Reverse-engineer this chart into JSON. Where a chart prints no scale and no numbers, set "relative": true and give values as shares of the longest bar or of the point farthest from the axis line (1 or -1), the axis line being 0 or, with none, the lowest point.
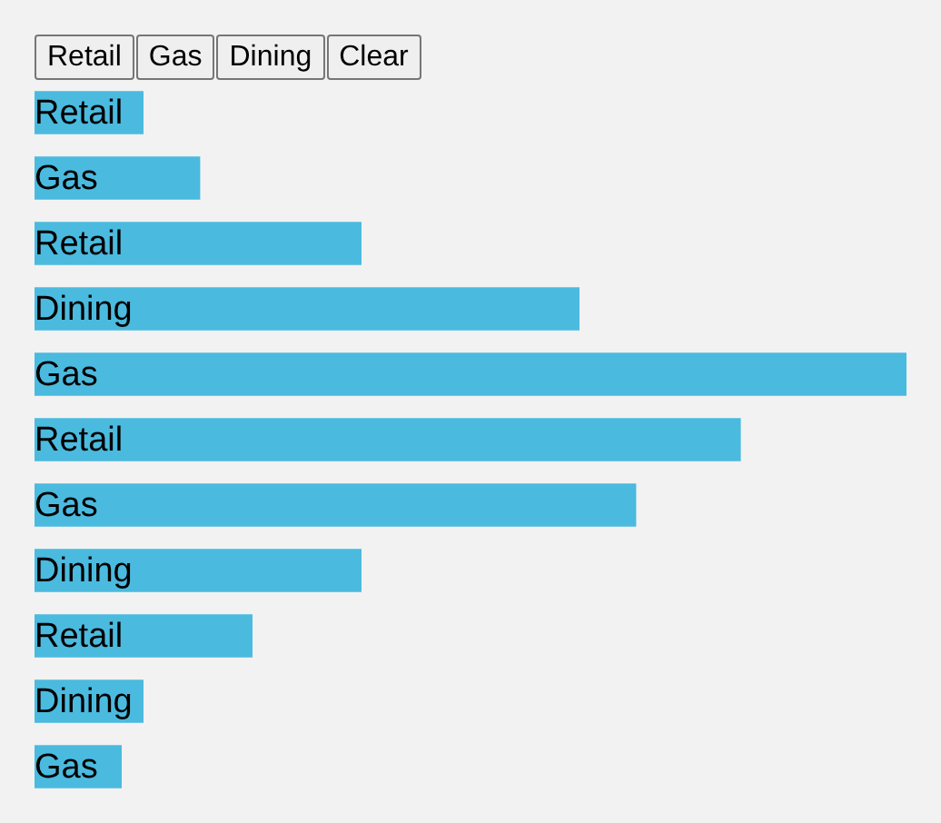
{
  "chart_data": {
    "type": "bar",
    "orientation": "horizontal",
    "relative": true,
    "categories": [
      "Retail",
      "Gas",
      "Retail",
      "Dining",
      "Gas",
      "Retail",
      "Gas",
      "Dining",
      "Retail",
      "Dining",
      "Gas"
    ],
    "values": [
      0.125,
      0.19,
      0.375,
      0.625,
      1,
      0.81,
      0.69,
      0.375,
      0.25,
      0.125,
      0.1
    ],
    "color": "#4bbadf",
    "annotations": [
      "Retail",
      "Gas",
      "Dining",
      "Clear"
    ]
  }
}
